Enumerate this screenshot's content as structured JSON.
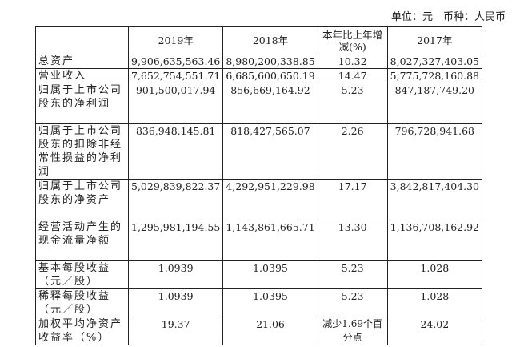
{
  "unit_note": "单位：元　币种：人民币",
  "headers": [
    "",
    "2019年",
    "2018年",
    "本年比上年增减(%)",
    "2017年"
  ],
  "rows": [
    {
      "label": "总资产",
      "values": [
        "9,906,635,563.46",
        "8,980,200,338.85",
        "10.32",
        "8,027,327,403.05"
      ],
      "h": 1
    },
    {
      "label": "营业收入",
      "values": [
        "7,652,754,551.71",
        "6,685,600,650.19",
        "14.47",
        "5,775,728,160.88"
      ],
      "h": 1
    },
    {
      "label": "归属于上市公司股东的净利润",
      "values": [
        "901,500,017.94",
        "856,669,164.92",
        "5.23",
        "847,187,749.20"
      ],
      "h": 3
    },
    {
      "label": "归属于上市公司股东的扣除非经常性损益的净利润",
      "values": [
        "836,948,145.81",
        "818,427,565.07",
        "2.26",
        "796,728,941.68"
      ],
      "h": 4
    },
    {
      "label": "归属于上市公司股东的净资产",
      "values": [
        "5,029,839,822.37",
        "4,292,951,229.98",
        "17.17",
        "3,842,817,404.30"
      ],
      "h": 3
    },
    {
      "label": "经营活动产生的现金流量净额",
      "values": [
        "1,295,981,194.55",
        "1,143,861,665.71",
        "13.30",
        "1,136,708,162.92"
      ],
      "h": 3
    },
    {
      "label": "基本每股收益（元／股）",
      "values": [
        "1.0939",
        "1.0395",
        "5.23",
        "1.028"
      ],
      "h": 2
    },
    {
      "label": "稀释每股收益（元／股）",
      "values": [
        "1.0939",
        "1.0395",
        "5.23",
        "1.028"
      ],
      "h": 2
    },
    {
      "label": "加权平均净资产收益率（%）",
      "values": [
        "19.37",
        "21.06",
        "减少1.69个百分点",
        "24.02"
      ],
      "h": 2
    }
  ]
}
